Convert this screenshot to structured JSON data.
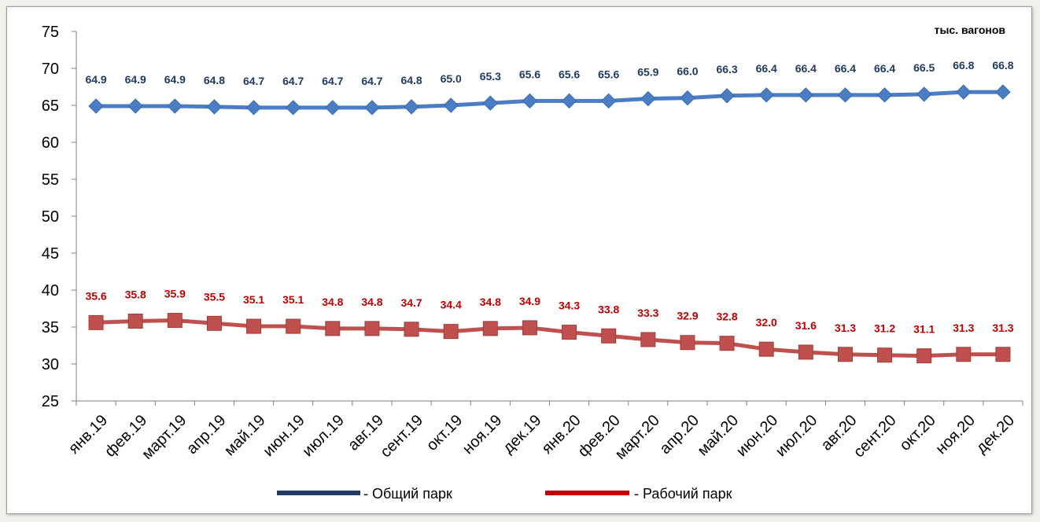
{
  "chart_data": {
    "type": "line",
    "categories": [
      "янв.19",
      "фев.19",
      "март.19",
      "апр.19",
      "май.19",
      "июн.19",
      "июл.19",
      "авг.19",
      "сент.19",
      "окт.19",
      "ноя.19",
      "дек.19",
      "янв.20",
      "фев.20",
      "март.20",
      "апр.20",
      "май.20",
      "июн.20",
      "июл.20",
      "авг.20",
      "сент.20",
      "окт.20",
      "ноя.20",
      "дек.20"
    ],
    "series": [
      {
        "name": "- Общий парк",
        "color": "#4a7dc4",
        "label_color": "#1f3b64",
        "legend_color": "#1f3b64",
        "marker": "diamond",
        "values": [
          64.9,
          64.9,
          64.9,
          64.8,
          64.7,
          64.7,
          64.7,
          64.7,
          64.8,
          65.0,
          65.3,
          65.6,
          65.6,
          65.6,
          65.9,
          66.0,
          66.3,
          66.4,
          66.4,
          66.4,
          66.4,
          66.5,
          66.8,
          66.8
        ],
        "value_labels": [
          "64.9",
          "64.9",
          "64.9",
          "64.8",
          "64.7",
          "64.7",
          "64.7",
          "64.7",
          "64.8",
          "65.0",
          "65.3",
          "65.6",
          "65.6",
          "65.6",
          "65.9",
          "66.0",
          "66.3",
          "66.4",
          "66.4",
          "66.4",
          "66.4",
          "66.5",
          "66.8",
          "66.8"
        ]
      },
      {
        "name": "- Рабочий парк",
        "color": "#c0504d",
        "label_color": "#c00000",
        "legend_color": "#c00000",
        "marker": "square",
        "values": [
          35.6,
          35.8,
          35.9,
          35.5,
          35.1,
          35.1,
          34.8,
          34.8,
          34.7,
          34.4,
          34.8,
          34.9,
          34.3,
          33.8,
          33.3,
          32.9,
          32.8,
          32.0,
          31.6,
          31.3,
          31.2,
          31.1,
          31.3,
          31.3
        ],
        "value_labels": [
          "35.6",
          "35.8",
          "35.9",
          "35.5",
          "35.1",
          "35.1",
          "34.8",
          "34.8",
          "34.7",
          "34.4",
          "34.8",
          "34.9",
          "34.3",
          "33.8",
          "33.3",
          "32.9",
          "32.8",
          "32.0",
          "31.6",
          "31.3",
          "31.2",
          "31.1",
          "31.3",
          "31.3"
        ]
      }
    ],
    "ylim": [
      25,
      75
    ],
    "yticks": [
      "25",
      "30",
      "35",
      "40",
      "45",
      "50",
      "55",
      "60",
      "65",
      "70",
      "75"
    ],
    "unit_label": "тыс. вагонов",
    "grid": false,
    "legend": "bottom"
  }
}
